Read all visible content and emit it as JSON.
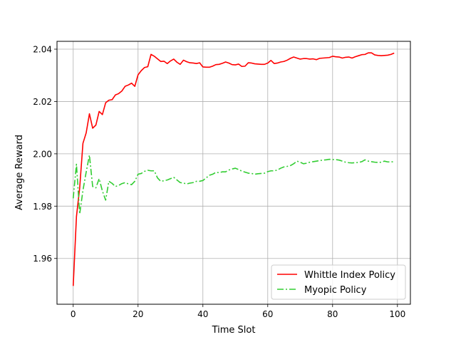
{
  "chart_data": {
    "type": "line",
    "title": "",
    "xlabel": "Time Slot",
    "ylabel": "Average Reward",
    "xlim": [
      -5,
      104
    ],
    "ylim": [
      1.9425,
      2.043
    ],
    "xticks": [
      0,
      20,
      40,
      60,
      80,
      100
    ],
    "xtick_labels": [
      "0",
      "20",
      "40",
      "60",
      "80",
      "100"
    ],
    "yticks": [
      1.96,
      1.98,
      2.0,
      2.02,
      2.04
    ],
    "ytick_labels": [
      "1.96",
      "1.98",
      "2.00",
      "2.02",
      "2.04"
    ],
    "grid": true,
    "legend_position": "lower-right",
    "series": [
      {
        "name": "Whittle Index Policy",
        "color": "#ff0000",
        "style": "solid",
        "x": [
          0,
          1,
          2,
          3,
          4,
          5,
          6,
          7,
          8,
          9,
          10,
          11,
          12,
          13,
          14,
          15,
          16,
          17,
          18,
          19,
          20,
          21,
          22,
          23,
          24,
          25,
          26,
          27,
          28,
          29,
          30,
          31,
          32,
          33,
          34,
          35,
          36,
          37,
          38,
          39,
          40,
          41,
          42,
          43,
          44,
          45,
          46,
          47,
          48,
          49,
          50,
          51,
          52,
          53,
          54,
          55,
          56,
          57,
          58,
          59,
          60,
          61,
          62,
          63,
          64,
          65,
          66,
          67,
          68,
          69,
          70,
          71,
          72,
          73,
          74,
          75,
          76,
          77,
          78,
          79,
          80,
          81,
          82,
          83,
          84,
          85,
          86,
          87,
          88,
          89,
          90,
          91,
          92,
          93,
          94,
          95,
          96,
          97,
          98,
          99
        ],
        "values": [
          1.9495,
          1.976,
          1.987,
          2.004,
          2.008,
          2.0153,
          2.0098,
          2.011,
          2.0162,
          2.015,
          2.0195,
          2.0205,
          2.0207,
          2.0225,
          2.023,
          2.024,
          2.0258,
          2.0263,
          2.027,
          2.0258,
          2.0302,
          2.0318,
          2.033,
          2.0333,
          2.038,
          2.0373,
          2.0363,
          2.0353,
          2.0354,
          2.0345,
          2.0355,
          2.0362,
          2.035,
          2.0342,
          2.0358,
          2.0352,
          2.0348,
          2.0347,
          2.0345,
          2.0348,
          2.0332,
          2.0331,
          2.0331,
          2.0335,
          2.0341,
          2.0342,
          2.0346,
          2.0351,
          2.0347,
          2.0341,
          2.034,
          2.0343,
          2.0334,
          2.0335,
          2.0348,
          2.0347,
          2.0344,
          2.0343,
          2.0342,
          2.0342,
          2.0347,
          2.0357,
          2.0345,
          2.0347,
          2.0351,
          2.0353,
          2.0358,
          2.0365,
          2.037,
          2.0366,
          2.0362,
          2.0364,
          2.0364,
          2.0362,
          2.0363,
          2.036,
          2.0365,
          2.0366,
          2.0367,
          2.0368,
          2.0373,
          2.0371,
          2.037,
          2.0366,
          2.0369,
          2.037,
          2.0366,
          2.0371,
          2.0375,
          2.0379,
          2.038,
          2.0386,
          2.0386,
          2.0378,
          2.0376,
          2.0375,
          2.0376,
          2.0377,
          2.038,
          2.0385
        ]
      },
      {
        "name": "Myopic Policy",
        "color": "#32cd32",
        "style": "dashdot",
        "x": [
          0,
          1,
          2,
          3,
          4,
          5,
          6,
          7,
          8,
          9,
          10,
          11,
          12,
          13,
          14,
          15,
          16,
          17,
          18,
          19,
          20,
          21,
          22,
          23,
          24,
          25,
          26,
          27,
          28,
          29,
          30,
          31,
          32,
          33,
          34,
          35,
          36,
          37,
          38,
          39,
          40,
          41,
          42,
          43,
          44,
          45,
          46,
          47,
          48,
          49,
          50,
          51,
          52,
          53,
          54,
          55,
          56,
          57,
          58,
          59,
          60,
          61,
          62,
          63,
          64,
          65,
          66,
          67,
          68,
          69,
          70,
          71,
          72,
          73,
          74,
          75,
          76,
          77,
          78,
          79,
          80,
          81,
          82,
          83,
          84,
          85,
          86,
          87,
          88,
          89,
          90,
          91,
          92,
          93,
          94,
          95,
          96,
          97,
          98,
          99
        ],
        "values": [
          1.983,
          1.996,
          1.977,
          1.986,
          1.993,
          1.9995,
          1.9875,
          1.987,
          1.9905,
          1.9858,
          1.9823,
          1.9895,
          1.9887,
          1.9875,
          1.9879,
          1.9886,
          1.989,
          1.9885,
          1.9882,
          1.9895,
          1.9922,
          1.9925,
          1.9933,
          1.9937,
          1.9935,
          1.9935,
          1.9908,
          1.9895,
          1.9897,
          1.99,
          1.9905,
          1.991,
          1.99,
          1.989,
          1.9888,
          1.9885,
          1.9888,
          1.989,
          1.9895,
          1.9895,
          1.9898,
          1.9908,
          1.9918,
          1.9922,
          1.9929,
          1.9928,
          1.9931,
          1.9931,
          1.9938,
          1.9942,
          1.9945,
          1.994,
          1.9934,
          1.993,
          1.9926,
          1.9925,
          1.9922,
          1.9924,
          1.9925,
          1.9926,
          1.9932,
          1.9935,
          1.9935,
          1.9938,
          1.9945,
          1.995,
          1.9952,
          1.9955,
          1.9962,
          1.9972,
          1.9968,
          1.9962,
          1.9964,
          1.9968,
          1.997,
          1.9972,
          1.9974,
          1.9976,
          1.9977,
          1.9979,
          1.9978,
          1.9978,
          1.9976,
          1.9972,
          1.9968,
          1.9966,
          1.9965,
          1.9966,
          1.9967,
          1.997,
          1.9977,
          1.9972,
          1.997,
          1.9968,
          1.9967,
          1.9968,
          1.9972,
          1.9969,
          1.9969,
          1.997
        ]
      }
    ]
  }
}
